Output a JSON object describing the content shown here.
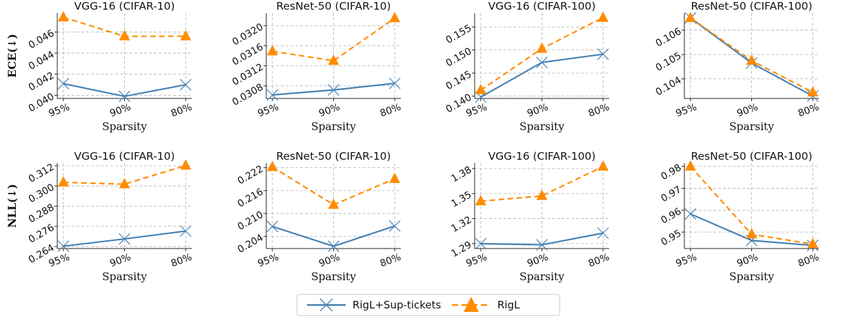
{
  "colors": {
    "sup": "#4682b4",
    "rigl": "#ff8c00"
  },
  "legend": {
    "sup_label": "RigL+Sup-tickets",
    "rigl_label": "RigL"
  },
  "chart_data": [
    {
      "type": "line",
      "title": "VGG-16 (CIFAR-10)",
      "xlabel": "Sparsity",
      "ylabel": "ECE(↓)",
      "categories": [
        "95%",
        "90%",
        "80%"
      ],
      "ylim": [
        0.0397,
        0.0478
      ],
      "yticks": [
        0.04,
        0.042,
        0.044,
        0.046
      ],
      "ytick_labels": [
        "0.040",
        "0.042",
        "0.044",
        "0.046"
      ],
      "series": [
        {
          "name": "RigL+Sup-tickets",
          "values": [
            0.0411,
            0.0399,
            0.041
          ]
        },
        {
          "name": "RigL",
          "values": [
            0.0474,
            0.0456,
            0.0456
          ]
        }
      ]
    },
    {
      "type": "line",
      "title": "ResNet-50 (CIFAR-10)",
      "xlabel": "Sparsity",
      "ylabel": "",
      "categories": [
        "95%",
        "90%",
        "80%"
      ],
      "ylim": [
        0.03055,
        0.03225
      ],
      "yticks": [
        0.0308,
        0.0312,
        0.0316,
        0.032
      ],
      "ytick_labels": [
        "0.0308",
        "0.0312",
        "0.0316",
        "0.0320"
      ],
      "series": [
        {
          "name": "RigL+Sup-tickets",
          "values": [
            0.03062,
            0.03072,
            0.03085
          ]
        },
        {
          "name": "RigL",
          "values": [
            0.03149,
            0.0313,
            0.03215
          ]
        }
      ]
    },
    {
      "type": "line",
      "title": "VGG-16 (CIFAR-100)",
      "xlabel": "Sparsity",
      "ylabel": "",
      "categories": [
        "95%",
        "90%",
        "80%"
      ],
      "ylim": [
        0.1395,
        0.158
      ],
      "yticks": [
        0.14,
        0.145,
        0.15,
        0.155
      ],
      "ytick_labels": [
        "0.140",
        "0.145",
        "0.150",
        "0.155"
      ],
      "series": [
        {
          "name": "RigL+Sup-tickets",
          "values": [
            0.1398,
            0.1473,
            0.1491
          ]
        },
        {
          "name": "RigL",
          "values": [
            0.1413,
            0.1503,
            0.157
          ]
        }
      ]
    },
    {
      "type": "line",
      "title": "ResNet-50 (CIFAR-100)",
      "xlabel": "Sparsity",
      "ylabel": "",
      "categories": [
        "95%",
        "90%",
        "80%"
      ],
      "ylim": [
        0.1032,
        0.1067
      ],
      "yticks": [
        0.104,
        0.105,
        0.106
      ],
      "ytick_labels": [
        "0.104",
        "0.105",
        "0.106"
      ],
      "series": [
        {
          "name": "RigL+Sup-tickets",
          "values": [
            0.1065,
            0.10465,
            0.1033
          ]
        },
        {
          "name": "RigL",
          "values": [
            0.1065,
            0.10475,
            0.10345
          ]
        }
      ]
    },
    {
      "type": "line",
      "title": "VGG-16 (CIFAR-10)",
      "xlabel": "Sparsity",
      "ylabel": "NLL(↓)",
      "categories": [
        "95%",
        "90%",
        "80%"
      ],
      "ylim": [
        0.2628,
        0.3136
      ],
      "yticks": [
        0.264,
        0.276,
        0.288,
        0.3,
        0.312
      ],
      "ytick_labels": [
        "0.264",
        "0.276",
        "0.288",
        "0.300",
        "0.312"
      ],
      "series": [
        {
          "name": "RigL+Sup-tickets",
          "values": [
            0.2642,
            0.2685,
            0.2732
          ]
        },
        {
          "name": "RigL",
          "values": [
            0.3022,
            0.3011,
            0.3122
          ]
        }
      ]
    },
    {
      "type": "line",
      "title": "ResNet-50 (CIFAR-10)",
      "xlabel": "Sparsity",
      "ylabel": "",
      "categories": [
        "95%",
        "90%",
        "80%"
      ],
      "ylim": [
        0.2008,
        0.2232
      ],
      "yticks": [
        0.204,
        0.21,
        0.216,
        0.222
      ],
      "ytick_labels": [
        "0.204",
        "0.210",
        "0.216",
        "0.222"
      ],
      "series": [
        {
          "name": "RigL+Sup-tickets",
          "values": [
            0.2066,
            0.2014,
            0.2067
          ]
        },
        {
          "name": "RigL",
          "values": [
            0.2222,
            0.2123,
            0.2191
          ]
        }
      ]
    },
    {
      "type": "line",
      "title": "VGG-16 (CIFAR-100)",
      "xlabel": "Sparsity",
      "ylabel": "",
      "categories": [
        "95%",
        "90%",
        "80%"
      ],
      "ylim": [
        1.284,
        1.3865
      ],
      "yticks": [
        1.29,
        1.32,
        1.35,
        1.38
      ],
      "ytick_labels": [
        "1.29",
        "1.32",
        "1.35",
        "1.38"
      ],
      "series": [
        {
          "name": "RigL+Sup-tickets",
          "values": [
            1.2898,
            1.2885,
            1.3025
          ]
        },
        {
          "name": "RigL",
          "values": [
            1.3408,
            1.3472,
            1.3825
          ]
        }
      ]
    },
    {
      "type": "line",
      "title": "ResNet-50 (CIFAR-100)",
      "xlabel": "Sparsity",
      "ylabel": "",
      "categories": [
        "95%",
        "90%",
        "80%"
      ],
      "ylim": [
        0.9425,
        0.9815
      ],
      "yticks": [
        0.95,
        0.96,
        0.97,
        0.98
      ],
      "ytick_labels": [
        "0.95",
        "0.96",
        "0.97",
        "0.98"
      ],
      "series": [
        {
          "name": "RigL+Sup-tickets",
          "values": [
            0.9583,
            0.9462,
            0.9439
          ]
        },
        {
          "name": "RigL",
          "values": [
            0.98,
            0.949,
            0.9445
          ]
        }
      ]
    }
  ]
}
